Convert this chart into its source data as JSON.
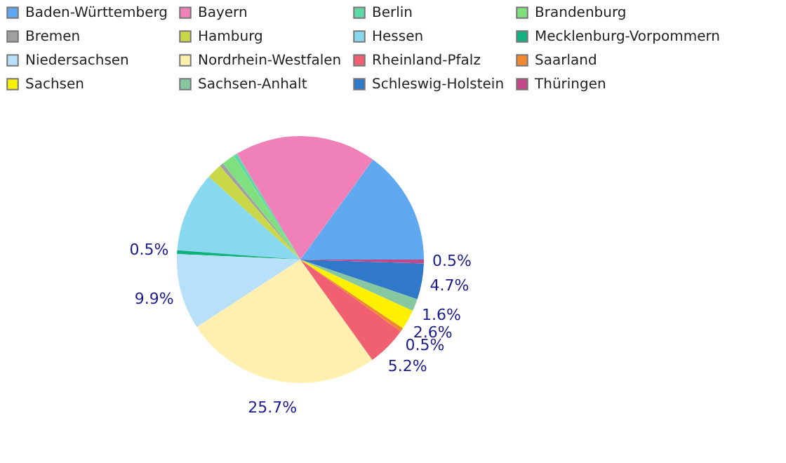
{
  "chart_data": {
    "type": "pie",
    "categories": [
      "Baden-Württemberg",
      "Bayern",
      "Berlin",
      "Brandenburg",
      "Bremen",
      "Hamburg",
      "Hessen",
      "Mecklenburg-Vorpommern",
      "Niedersachsen",
      "Nordrhein-Westfalen",
      "Rheinland-Pfalz",
      "Saarland",
      "Sachsen",
      "Sachsen-Anhalt",
      "Schleswig-Holstein",
      "Thüringen"
    ],
    "values": [
      15,
      18.6,
      0.5,
      1.7,
      0.5,
      2,
      10.5,
      0.5,
      9.9,
      25.7,
      5.2,
      0.5,
      2.6,
      1.6,
      4.7,
      0.5
    ],
    "colors": [
      "#60a8f0",
      "#f080b8",
      "#60d8a8",
      "#80e080",
      "#a0a0a0",
      "#c8d848",
      "#88d8f0",
      "#10b080",
      "#b8e0f8",
      "#fff0b0",
      "#f06070",
      "#f08830",
      "#fff000",
      "#88c8a0",
      "#3078c8",
      "#c04888"
    ],
    "value_labels": [
      null,
      null,
      null,
      null,
      null,
      null,
      null,
      "0.5%",
      "9.9%",
      "25.7%",
      "5.2%",
      "0.5%",
      "2.6%",
      "1.6%",
      "4.7%",
      "0.5%"
    ],
    "legend": "top"
  }
}
